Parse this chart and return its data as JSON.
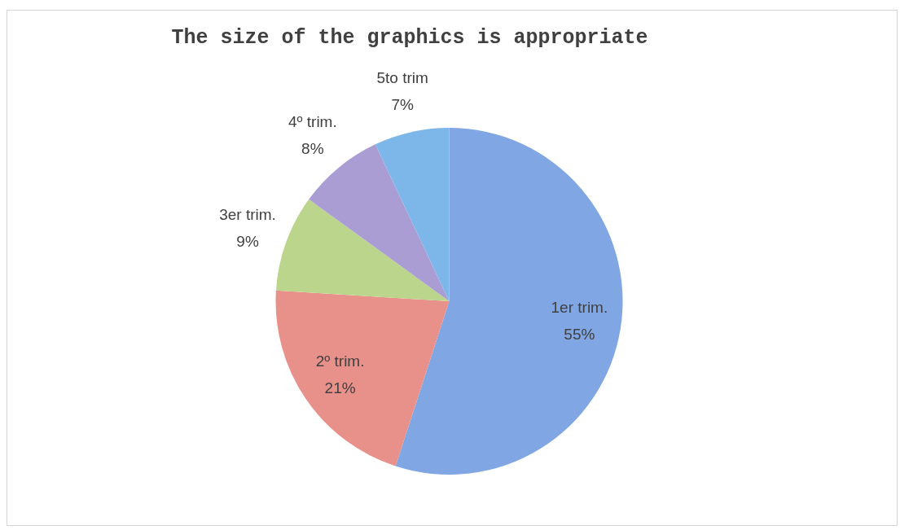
{
  "chart_data": {
    "type": "pie",
    "title": "The size of the graphics is appropriate",
    "categories": [
      "1er trim.",
      "2º trim.",
      "3er trim.",
      "4º trim.",
      "5to trim"
    ],
    "values": [
      55,
      21,
      9,
      8,
      7
    ],
    "value_labels": [
      "55%",
      "21%",
      "9%",
      "8%",
      "7%"
    ],
    "colors": [
      "#80a7e3",
      "#e8908a",
      "#bbd58d",
      "#a99dd3",
      "#7db7ea"
    ]
  }
}
